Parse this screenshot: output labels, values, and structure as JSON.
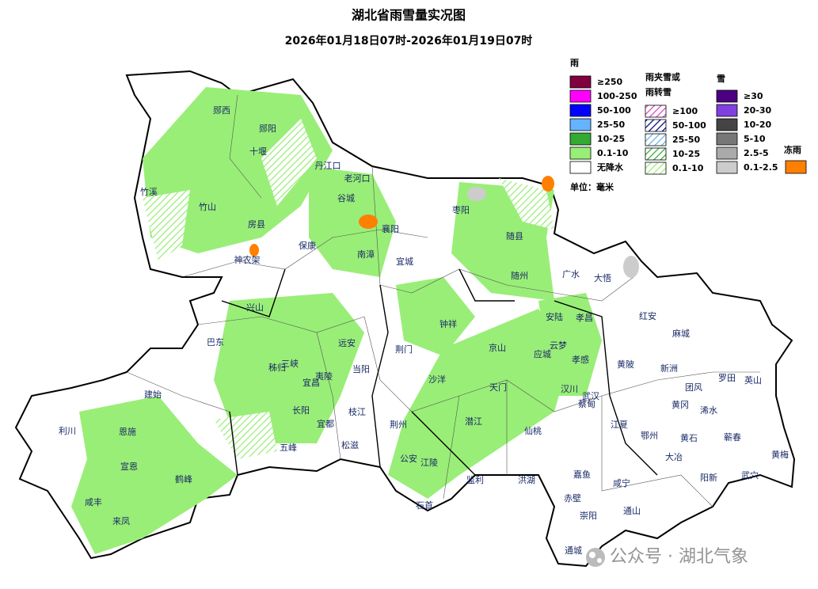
{
  "title": "湖北省雨雪量实况图",
  "subtitle": "2026年01月18日07时-2026年01月19日07时",
  "legend": {
    "rain": {
      "title": "雨",
      "items": [
        {
          "label": "≥250",
          "color": "#800040"
        },
        {
          "label": "100-250",
          "color": "#ff00ff"
        },
        {
          "label": "50-100",
          "color": "#0000ff"
        },
        {
          "label": "25-50",
          "color": "#66b3ff"
        },
        {
          "label": "10-25",
          "color": "#33aa33"
        },
        {
          "label": "0.1-10",
          "color": "#99ee77"
        },
        {
          "label": "无降水",
          "color": "#ffffff"
        }
      ]
    },
    "sleet": {
      "title_lines": [
        "雨夹雪或",
        "雨转雪"
      ],
      "items": [
        {
          "label": "≥100",
          "color": "#e040c0"
        },
        {
          "label": "50-100",
          "color": "#000080"
        },
        {
          "label": "25-50",
          "color": "#66b3e0"
        },
        {
          "label": "10-25",
          "color": "#33aa33"
        },
        {
          "label": "0.1-10",
          "color": "#99ee77"
        }
      ]
    },
    "snow": {
      "title": "雪",
      "items": [
        {
          "label": "≥30",
          "color": "#4b0080"
        },
        {
          "label": "20-30",
          "color": "#8040e0"
        },
        {
          "label": "10-20",
          "color": "#444444"
        },
        {
          "label": "5-10",
          "color": "#777777"
        },
        {
          "label": "2.5-5",
          "color": "#aaaaaa"
        },
        {
          "label": "0.1-2.5",
          "color": "#cccccc"
        }
      ]
    },
    "freezing_rain": {
      "title": "冻雨",
      "color": "#ff8000"
    },
    "unit": "单位：毫米"
  },
  "places": [
    "郧西",
    "郧阳",
    "十堰",
    "丹江口",
    "老河口",
    "竹溪",
    "谷城",
    "枣阳",
    "竹山",
    "房县",
    "襄阳",
    "随县",
    "神农架",
    "保康",
    "南漳",
    "宜城",
    "随州",
    "广水",
    "大悟",
    "兴山",
    "安陆",
    "孝昌",
    "红安",
    "钟祥",
    "麻城",
    "巴东",
    "远安",
    "京山",
    "云梦",
    "荆门",
    "应城",
    "秭归",
    "三峡",
    "当阳",
    "孝感",
    "黄陂",
    "新洲",
    "罗田",
    "英山",
    "夷陵",
    "宜昌",
    "沙洋",
    "团风",
    "建始",
    "天门",
    "汉川",
    "武汉",
    "蔡甸",
    "枝江",
    "长阳",
    "黄冈",
    "浠水",
    "利川",
    "恩施",
    "荆州",
    "潜江",
    "宜都",
    "江夏",
    "仙桃",
    "鄂州",
    "黄石",
    "蕲春",
    "松滋",
    "五峰",
    "公安",
    "江陵",
    "大冶",
    "黄梅",
    "宣恩",
    "嘉鱼",
    "洪湖",
    "监利",
    "咸宁",
    "阳新",
    "武穴",
    "鹤峰",
    "咸丰",
    "赤壁",
    "石首",
    "通山",
    "崇阳",
    "来凤",
    "通城"
  ],
  "watermark": "公众号 · 湖北气象"
}
